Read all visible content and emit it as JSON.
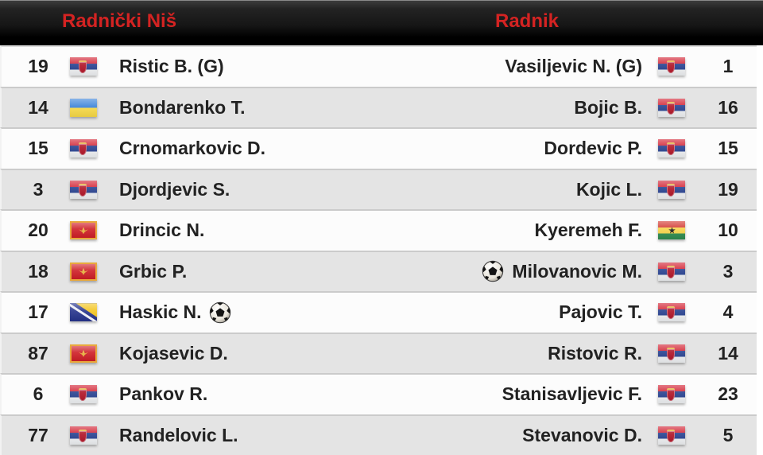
{
  "header": {
    "home_team": "Radnički Niš",
    "away_team": "Radnik",
    "team_name_color": "#d42322",
    "background_color": "#000000"
  },
  "colors": {
    "row_even": "#fcfcfc",
    "row_odd": "#e4e4e4",
    "text": "#222222"
  },
  "icons": {
    "goal": "soccer-ball-icon",
    "flags_used": [
      "serbia-flag",
      "ukraine-flag",
      "montenegro-flag",
      "bosnia-flag",
      "ghana-flag"
    ]
  },
  "rows": [
    {
      "home": {
        "number": "19",
        "flag": "serbia",
        "name": "Ristic B. (G)",
        "goal": false
      },
      "away": {
        "number": "1",
        "flag": "serbia",
        "name": "Vasiljevic N. (G)",
        "goal": false
      }
    },
    {
      "home": {
        "number": "14",
        "flag": "ukraine",
        "name": "Bondarenko T.",
        "goal": false
      },
      "away": {
        "number": "16",
        "flag": "serbia",
        "name": "Bojic B.",
        "goal": false
      }
    },
    {
      "home": {
        "number": "15",
        "flag": "serbia",
        "name": "Crnomarkovic D.",
        "goal": false
      },
      "away": {
        "number": "15",
        "flag": "serbia",
        "name": "Dordevic P.",
        "goal": false
      }
    },
    {
      "home": {
        "number": "3",
        "flag": "serbia",
        "name": "Djordjevic S.",
        "goal": false
      },
      "away": {
        "number": "19",
        "flag": "serbia",
        "name": "Kojic L.",
        "goal": false
      }
    },
    {
      "home": {
        "number": "20",
        "flag": "montenegro",
        "name": "Drincic N.",
        "goal": false
      },
      "away": {
        "number": "10",
        "flag": "ghana",
        "name": "Kyeremeh F.",
        "goal": false
      }
    },
    {
      "home": {
        "number": "18",
        "flag": "montenegro",
        "name": "Grbic P.",
        "goal": false
      },
      "away": {
        "number": "3",
        "flag": "serbia",
        "name": "Milovanovic M.",
        "goal": true
      }
    },
    {
      "home": {
        "number": "17",
        "flag": "bosnia",
        "name": "Haskic N.",
        "goal": true
      },
      "away": {
        "number": "4",
        "flag": "serbia",
        "name": "Pajovic T.",
        "goal": false
      }
    },
    {
      "home": {
        "number": "87",
        "flag": "montenegro",
        "name": "Kojasevic D.",
        "goal": false
      },
      "away": {
        "number": "14",
        "flag": "serbia",
        "name": "Ristovic R.",
        "goal": false
      }
    },
    {
      "home": {
        "number": "6",
        "flag": "serbia",
        "name": "Pankov R.",
        "goal": false
      },
      "away": {
        "number": "23",
        "flag": "serbia",
        "name": "Stanisavljevic F.",
        "goal": false
      }
    },
    {
      "home": {
        "number": "77",
        "flag": "serbia",
        "name": "Randelovic L.",
        "goal": false
      },
      "away": {
        "number": "5",
        "flag": "serbia",
        "name": "Stevanovic D.",
        "goal": false
      }
    }
  ]
}
